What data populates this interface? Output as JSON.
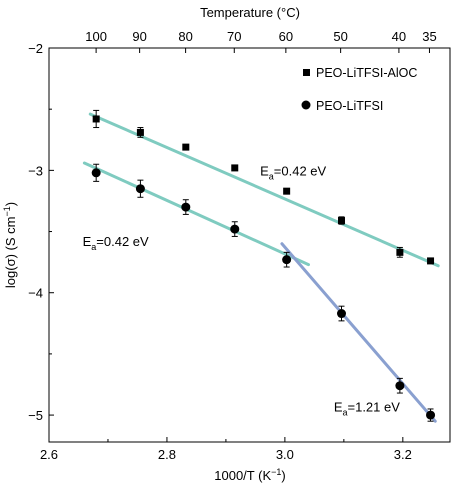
{
  "chart_data": {
    "type": "scatter",
    "x_axis": {
      "label": "1000/T (K",
      "label_sup": "−1",
      "label_end": ")",
      "range": [
        2.6,
        3.28
      ],
      "ticks": [
        2.6,
        2.8,
        3.0,
        3.2
      ],
      "tick_labels": [
        "2.6",
        "2.8",
        "3.0",
        "3.2"
      ]
    },
    "top_axis": {
      "label": "Temperature (°C)",
      "ticks_celsius": [
        100,
        90,
        80,
        70,
        60,
        50,
        40,
        35
      ],
      "tick_labels": [
        "100",
        "90",
        "80",
        "70",
        "60",
        "50",
        "40",
        "35"
      ]
    },
    "y_axis": {
      "label": "log(σ) (S cm",
      "label_sup": "−1",
      "label_end": ")",
      "range": [
        -5.22,
        -2.0
      ],
      "ticks": [
        -5,
        -4,
        -3,
        -2
      ],
      "tick_labels": [
        "−5",
        "−4",
        "−3",
        "−2"
      ]
    },
    "legend": {
      "placement": "top-right",
      "entries": [
        {
          "marker": "square",
          "label": "PEO-LiTFSI-AlOC"
        },
        {
          "marker": "circle",
          "label": "PEO-LiTFSI"
        }
      ]
    },
    "series": [
      {
        "name": "PEO-LiTFSI-AlOC",
        "marker": "square",
        "x": [
          2.68,
          2.755,
          2.832,
          2.915,
          3.003,
          3.096,
          3.195,
          3.247
        ],
        "y": [
          -2.58,
          -2.69,
          -2.81,
          -2.98,
          -3.17,
          -3.41,
          -3.67,
          -3.74
        ],
        "error": [
          0.07,
          0.04,
          0.02,
          0.02,
          0.02,
          0.03,
          0.04,
          0.02
        ]
      },
      {
        "name": "PEO-LiTFSI",
        "marker": "circle",
        "x": [
          2.68,
          2.755,
          2.832,
          2.915,
          3.003,
          3.096,
          3.195,
          3.247
        ],
        "y": [
          -3.02,
          -3.15,
          -3.3,
          -3.48,
          -3.73,
          -4.17,
          -4.76,
          -5.0
        ],
        "error": [
          0.07,
          0.07,
          0.06,
          0.06,
          0.06,
          0.06,
          0.06,
          0.05
        ]
      }
    ],
    "fit_lines": [
      {
        "color": "#7fcbc0",
        "x": [
          2.67,
          3.26
        ],
        "y": [
          -2.54,
          -3.78
        ]
      },
      {
        "color": "#7fcbc0",
        "x": [
          2.66,
          3.04
        ],
        "y": [
          -2.94,
          -3.77
        ]
      },
      {
        "color": "#8aa0d0",
        "x": [
          2.995,
          3.255
        ],
        "y": [
          -3.6,
          -5.05
        ]
      }
    ],
    "annotations": [
      {
        "text": "E",
        "sub": "a",
        "rest": "=0.42 eV",
        "x": 2.958,
        "y": -3.04
      },
      {
        "text": "E",
        "sub": "a",
        "rest": "=0.42 eV",
        "x": 2.657,
        "y": -3.62
      },
      {
        "text": "E",
        "sub": "a",
        "rest": "=1.21 eV",
        "x": 3.083,
        "y": -4.97
      }
    ],
    "colors": {
      "markers": "#000000",
      "fit_low_slope": "#7fcbc0",
      "fit_high_slope": "#8aa0d0"
    }
  }
}
